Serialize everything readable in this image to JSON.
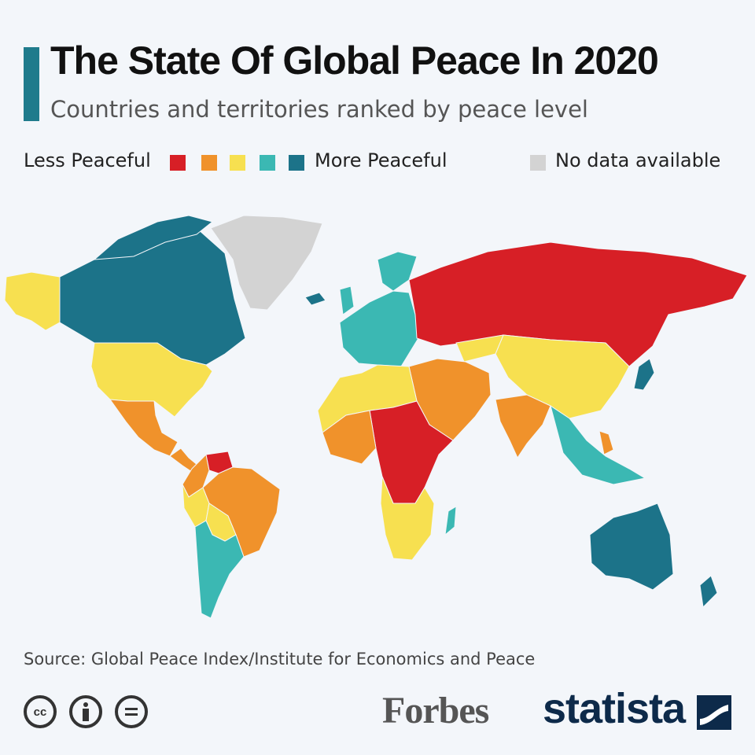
{
  "header": {
    "title": "The State Of Global Peace In 2020",
    "subtitle": "Countries and territories ranked by peace level"
  },
  "legend": {
    "less_label": "Less Peaceful",
    "more_label": "More Peaceful",
    "nodata_label": "No data available",
    "scale_colors": [
      "#d71f26",
      "#f0922b",
      "#f7e050",
      "#3bb8b3",
      "#1c7389"
    ],
    "nodata_color": "#d3d3d3"
  },
  "regions": [
    {
      "name": "Canada",
      "level": 5
    },
    {
      "name": "Alaska",
      "level": 3
    },
    {
      "name": "Greenland",
      "level": 0
    },
    {
      "name": "United States",
      "level": 3
    },
    {
      "name": "Mexico",
      "level": 2
    },
    {
      "name": "Central America",
      "level": 2
    },
    {
      "name": "Colombia",
      "level": 2
    },
    {
      "name": "Venezuela",
      "level": 1
    },
    {
      "name": "Brazil",
      "level": 2
    },
    {
      "name": "Peru",
      "level": 3
    },
    {
      "name": "Bolivia",
      "level": 3
    },
    {
      "name": "Argentina & Chile",
      "level": 4
    },
    {
      "name": "Europe",
      "level": 4
    },
    {
      "name": "Russia",
      "level": 1
    },
    {
      "name": "China",
      "level": 3
    },
    {
      "name": "India",
      "level": 2
    },
    {
      "name": "Middle East",
      "level": 2
    },
    {
      "name": "Central Africa",
      "level": 1
    },
    {
      "name": "Southern Africa",
      "level": 3
    },
    {
      "name": "Southeast Asia",
      "level": 4
    },
    {
      "name": "Australia",
      "level": 5
    },
    {
      "name": "New Zealand",
      "level": 5
    }
  ],
  "footer": {
    "source": "Source: Global Peace Index/Institute for Economics and Peace",
    "cc_icons": [
      "cc-icon",
      "attribution-icon",
      "no-derivatives-icon"
    ],
    "cc_text": "cc",
    "publisher_forbes": "Forbes",
    "publisher_statista": "statista"
  }
}
